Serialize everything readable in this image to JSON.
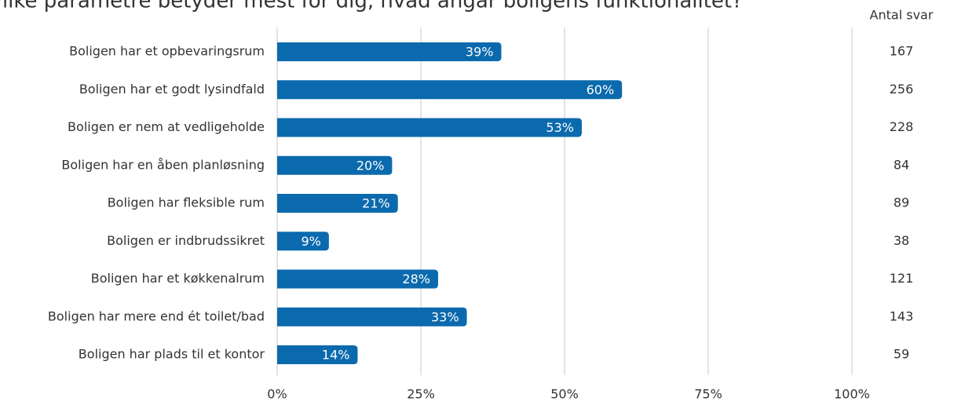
{
  "chart_data": {
    "type": "bar",
    "orientation": "horizontal",
    "title": "Hvilke parametre betyder mest for dig, hvad angår boligens funktionalitet?",
    "categories": [
      "Boligen har et opbevaringsrum",
      "Boligen har et godt lysindfald",
      "Boligen er nem at vedligeholde",
      "Boligen har en åben planløsning",
      "Boligen har fleksible rum",
      "Boligen er indbrudssikret",
      "Boligen har et køkkenalrum",
      "Boligen har mere end ét toilet/bad",
      "Boligen har plads til et kontor"
    ],
    "values": [
      39,
      60,
      53,
      20,
      21,
      9,
      28,
      33,
      14
    ],
    "value_labels": [
      "39%",
      "60%",
      "53%",
      "20%",
      "21%",
      "9%",
      "28%",
      "33%",
      "14%"
    ],
    "color": "#0b6aad",
    "xlim": [
      0,
      100
    ],
    "xticks": [
      {
        "value": 0,
        "label": "0%"
      },
      {
        "value": 25,
        "label": "25%"
      },
      {
        "value": 50,
        "label": "50%"
      },
      {
        "value": 75,
        "label": "75%"
      },
      {
        "value": 100,
        "label": "100%"
      }
    ],
    "grid": true,
    "counts": {
      "title": "Antal svar",
      "values": [
        167,
        256,
        228,
        84,
        89,
        38,
        121,
        143,
        59
      ]
    }
  }
}
